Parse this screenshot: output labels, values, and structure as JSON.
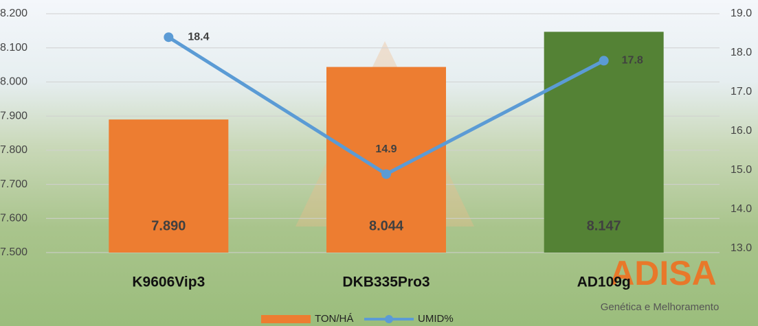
{
  "chart_data": {
    "type": "bar-line",
    "categories": [
      "K9606Vip3",
      "DKB335Pro3",
      "AD109g"
    ],
    "series": [
      {
        "name": "TON/HÁ",
        "type": "bar",
        "color": "#ed7d31",
        "point_colors": [
          "#ed7d31",
          "#ed7d31",
          "#548235"
        ],
        "values": [
          7890,
          8044,
          8147
        ],
        "value_labels": [
          "7.890",
          "8.044",
          "8.147"
        ]
      },
      {
        "name": "UMID%",
        "type": "line",
        "axis": "y2",
        "color": "#5b9bd5",
        "values": [
          18.4,
          14.9,
          17.8
        ]
      }
    ],
    "ylim": [
      7500,
      8200
    ],
    "yticks": [
      {
        "value": 7500,
        "label": "7.500"
      },
      {
        "value": 7600,
        "label": "7.600"
      },
      {
        "value": 7700,
        "label": "7.700"
      },
      {
        "value": 7800,
        "label": "7.800"
      },
      {
        "value": 7900,
        "label": "7.900"
      },
      {
        "value": 8000,
        "label": "8.000"
      },
      {
        "value": 8100,
        "label": "8.100"
      },
      {
        "value": 8200,
        "label": "8.200"
      }
    ],
    "y2lim": [
      13,
      19
    ],
    "y2ticks": [
      {
        "value": 13,
        "label": "13.0"
      },
      {
        "value": 14,
        "label": "14.0"
      },
      {
        "value": 15,
        "label": "15.0"
      },
      {
        "value": 16,
        "label": "16.0"
      },
      {
        "value": 17,
        "label": "17.0"
      },
      {
        "value": 18,
        "label": "18.0"
      },
      {
        "value": 19,
        "label": "19.0"
      }
    ],
    "grid": true,
    "legend": "bottom",
    "logo": {
      "name": "ADISA",
      "tagline": "Genética e Melhoramento"
    }
  }
}
